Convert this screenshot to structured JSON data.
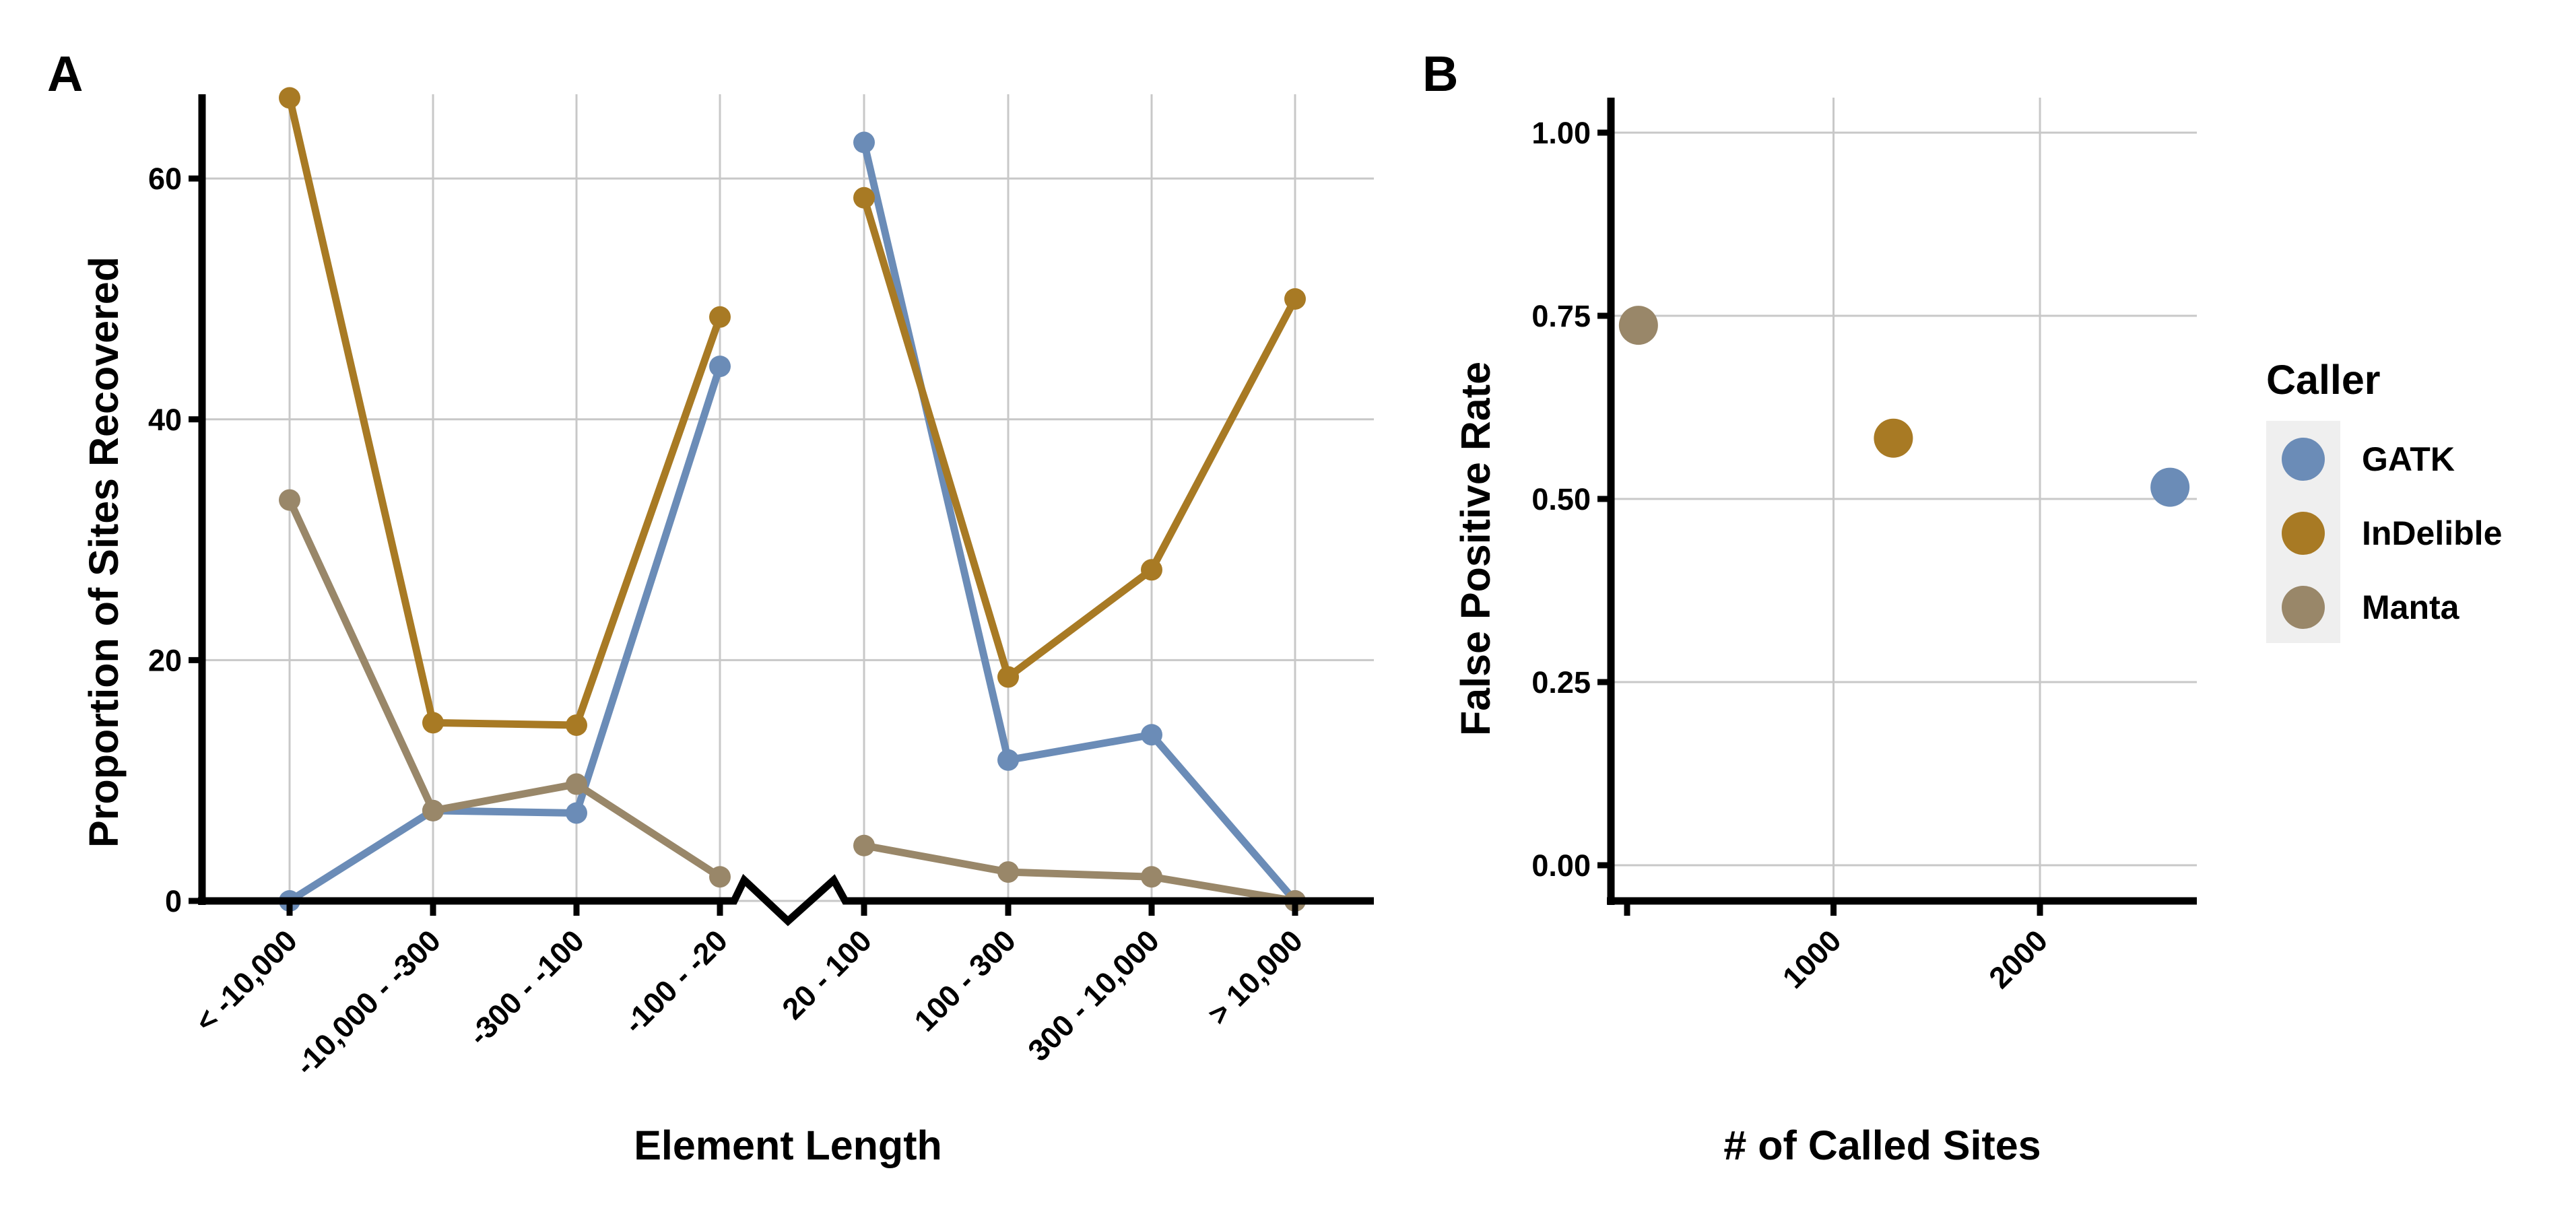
{
  "colors": {
    "GATK": "#6b8cb7",
    "InDelible": "#a87a24",
    "Manta": "#998769",
    "grid": "#c8c8c8",
    "legend_bg": "#efefef"
  },
  "panel_a": {
    "tag": "A",
    "xlabel": "Element Length",
    "ylabel": "Proportion of Sites Recovered"
  },
  "panel_b": {
    "tag": "B",
    "xlabel": "# of Called Sites",
    "ylabel": "False Positive Rate"
  },
  "legend": {
    "title": "Caller",
    "items": [
      "GATK",
      "InDelible",
      "Manta"
    ]
  },
  "chart_data": [
    {
      "panel": "A",
      "type": "line",
      "xlabel": "Element Length",
      "ylabel": "Proportion of Sites Recovered",
      "categories": [
        "< -10,000",
        "-10,000 - -300",
        "-300 - -100",
        "-100 - -20",
        "20 - 100",
        "100 - 300",
        "300 - 10,000",
        "> 10,000"
      ],
      "ylim": [
        0,
        67
      ],
      "yticks": [
        0,
        20,
        40,
        60
      ],
      "grid": true,
      "axis_break_between": [
        "-100 - -20",
        "20 - 100"
      ],
      "series": [
        {
          "name": "GATK",
          "values": [
            0,
            7.5,
            7.3,
            44.4,
            63,
            11.7,
            13.8,
            0
          ]
        },
        {
          "name": "InDelible",
          "values": [
            66.7,
            14.8,
            14.6,
            48.5,
            58.4,
            18.6,
            27.5,
            50
          ]
        },
        {
          "name": "Manta",
          "values": [
            33.3,
            7.5,
            9.7,
            2.0,
            4.6,
            2.4,
            2.0,
            0
          ]
        }
      ]
    },
    {
      "panel": "B",
      "type": "scatter",
      "xlabel": "# of Called Sites",
      "ylabel": "False Positive Rate",
      "xlim": [
        0,
        2760
      ],
      "ylim": [
        0,
        1.03
      ],
      "xticks": [
        1000,
        2000
      ],
      "yticks": [
        "0.00",
        "0.25",
        "0.50",
        "0.75",
        "1.00"
      ],
      "grid": true,
      "legend_position": "right",
      "series": [
        {
          "name": "GATK",
          "x": 2630,
          "y": 0.516
        },
        {
          "name": "InDelible",
          "x": 1290,
          "y": 0.583
        },
        {
          "name": "Manta",
          "x": 55,
          "y": 0.737
        }
      ]
    }
  ]
}
